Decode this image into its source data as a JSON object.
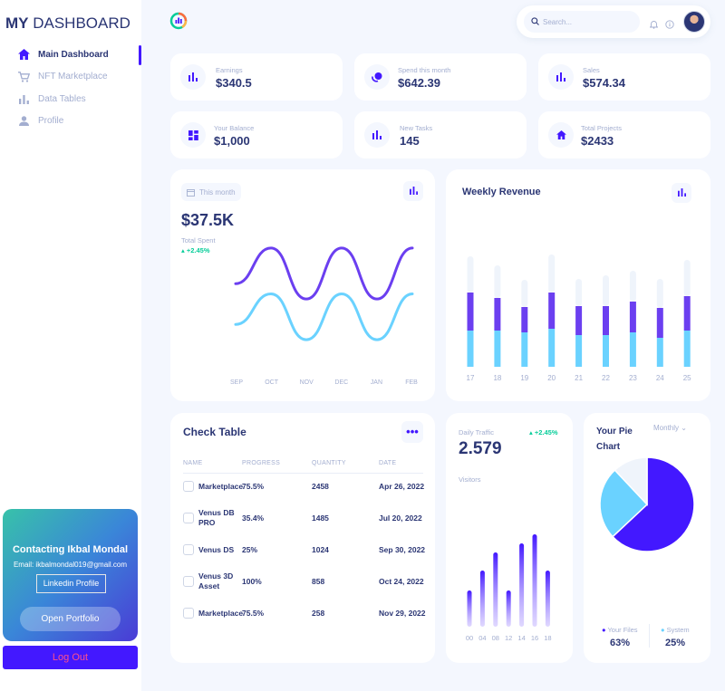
{
  "brand": {
    "bold": "MY",
    "rest": " DASHBOARD"
  },
  "sidebar": {
    "items": [
      {
        "label": "Main Dashboard",
        "icon": "home-icon"
      },
      {
        "label": "NFT Marketplace",
        "icon": "cart-icon"
      },
      {
        "label": "Data Tables",
        "icon": "bar-chart-icon"
      },
      {
        "label": "Profile",
        "icon": "user-icon"
      }
    ]
  },
  "contact": {
    "name": "Contacting Ikbal Mondal",
    "email": "Email: ikbalmondal019@gmail.com",
    "linkedin": "Linkedin Profile",
    "portfolio": "Open Portfolio"
  },
  "logout": "Log Out",
  "search": {
    "placeholder": "Search..."
  },
  "stats": [
    {
      "label": "Earnings",
      "value": "$340.5",
      "icon": "bar-chart-icon"
    },
    {
      "label": "Spend this month",
      "value": "$642.39",
      "icon": "coins-icon"
    },
    {
      "label": "Sales",
      "value": "$574.34",
      "icon": "bar-chart-icon"
    },
    {
      "label": "Your Balance",
      "value": "$1,000",
      "icon": "grid-icon"
    },
    {
      "label": "New Tasks",
      "value": "145",
      "icon": "bar-chart-icon"
    },
    {
      "label": "Total Projects",
      "value": "$2433",
      "icon": "home-icon"
    }
  ],
  "total_spent": {
    "badge": "This month",
    "amount": "$37.5K",
    "label": "Total Spent",
    "change": "+2.45%",
    "months": [
      "SEP",
      "OCT",
      "NOV",
      "DEC",
      "JAN",
      "FEB"
    ]
  },
  "weekly_revenue": {
    "title": "Weekly Revenue",
    "days": [
      "17",
      "18",
      "19",
      "20",
      "21",
      "22",
      "23",
      "24",
      "25"
    ]
  },
  "check_table": {
    "title": "Check Table",
    "headers": [
      "NAME",
      "PROGRESS",
      "QUANTITY",
      "DATE"
    ],
    "rows": [
      {
        "name": "Marketplace",
        "progress": "75.5%",
        "quantity": "2458",
        "date": "Apr 26, 2022"
      },
      {
        "name": "Venus DB PRO",
        "progress": "35.4%",
        "quantity": "1485",
        "date": "Jul 20, 2022"
      },
      {
        "name": "Venus DS",
        "progress": "25%",
        "quantity": "1024",
        "date": "Sep 30, 2022"
      },
      {
        "name": "Venus 3D Asset",
        "progress": "100%",
        "quantity": "858",
        "date": "Oct 24, 2022"
      },
      {
        "name": "Marketplace",
        "progress": "75.5%",
        "quantity": "258",
        "date": "Nov 29, 2022"
      }
    ]
  },
  "daily_traffic": {
    "label": "Daily Traffic",
    "value": "2.579",
    "unit": "Visitors",
    "change": "+2.45%",
    "hours": [
      "00",
      "04",
      "08",
      "12",
      "14",
      "16",
      "18"
    ]
  },
  "pie": {
    "title": "Your Pie Chart",
    "period": "Monthly",
    "legend": [
      {
        "label": "Your Files",
        "value": "63%"
      },
      {
        "label": "System",
        "value": "25%"
      }
    ]
  },
  "chart_data": [
    {
      "type": "line",
      "x": [
        "SEP",
        "OCT",
        "NOV",
        "DEC",
        "JAN",
        "FEB"
      ],
      "series": [
        {
          "values": [
            60,
            95,
            45,
            95,
            45,
            95
          ],
          "color": "#6b3ff0"
        },
        {
          "values": [
            20,
            50,
            5,
            50,
            5,
            50
          ],
          "color": "#6ad2ff"
        }
      ],
      "ylim": [
        -10,
        110
      ]
    },
    {
      "type": "bar",
      "stacked": true,
      "categories": [
        "17",
        "18",
        "19",
        "20",
        "21",
        "22",
        "23",
        "24",
        "25"
      ],
      "series": [
        {
          "values": [
            40,
            40,
            38,
            42,
            35,
            35,
            38,
            32,
            40
          ],
          "color": "#6ad2ff"
        },
        {
          "values": [
            42,
            36,
            28,
            40,
            32,
            32,
            34,
            33,
            38
          ],
          "color": "#6b3ff0"
        },
        {
          "values": [
            40,
            36,
            30,
            42,
            30,
            34,
            34,
            32,
            40
          ],
          "color": "#eff4fb"
        }
      ],
      "ylim": [
        0,
        130
      ]
    },
    {
      "type": "bar",
      "categories": [
        "00",
        "04",
        "08",
        "12",
        "14",
        "16",
        "18"
      ],
      "values": [
        40,
        62,
        82,
        40,
        92,
        102,
        62
      ],
      "ylim": [
        0,
        110
      ]
    },
    {
      "type": "pie",
      "labels": [
        "Your Files",
        "System",
        "Empty"
      ],
      "values": [
        63,
        25,
        12
      ],
      "colors": [
        "#4318ff",
        "#6ad2ff",
        "#eff4fb"
      ]
    }
  ],
  "colors": {
    "primary": "#4318ff",
    "secondary": "#6ad2ff",
    "text": "#2b3674",
    "muted": "#a3aed0",
    "success": "#05cd99"
  }
}
